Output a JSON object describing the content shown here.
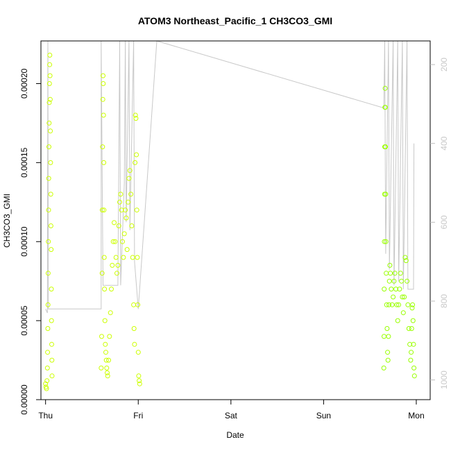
{
  "chart_data": {
    "type": "scatter",
    "title": "ATOM3 Northeast_Pacific_1 CH3CO3_GMI",
    "xlabel": "Date",
    "ylabel": "CH3CO3_GMI",
    "x_unit": "days since Thu 00:00",
    "xlim": [
      -0.05,
      4.15
    ],
    "ylim": [
      0.0,
      0.000227
    ],
    "x_ticks": [
      {
        "value": 0,
        "label": "Thu"
      },
      {
        "value": 1,
        "label": "Fri"
      },
      {
        "value": 2,
        "label": "Sat"
      },
      {
        "value": 3,
        "label": "Sun"
      },
      {
        "value": 4,
        "label": "Mon"
      }
    ],
    "y_ticks": [
      {
        "value": 0.0,
        "label": "0.00000"
      },
      {
        "value": 5e-05,
        "label": "0.00005"
      },
      {
        "value": 0.0001,
        "label": "0.00010"
      },
      {
        "value": 0.00015,
        "label": "0.00015"
      },
      {
        "value": 0.0002,
        "label": "0.00020"
      }
    ],
    "y2_ticks": [
      {
        "value": 200,
        "label": "200"
      },
      {
        "value": 400,
        "label": "400"
      },
      {
        "value": 600,
        "label": "600"
      },
      {
        "value": 800,
        "label": "800"
      },
      {
        "value": 1000,
        "label": "1000"
      }
    ],
    "y2lim": [
      1050,
      140
    ],
    "series": [
      {
        "color": "#ccff00",
        "points": [
          [
            0.0,
            1e-05
          ],
          [
            0.005,
            8e-06
          ],
          [
            0.01,
            7e-06
          ],
          [
            0.015,
            1.2e-05
          ],
          [
            0.02,
            2e-05
          ],
          [
            0.022,
            3e-05
          ],
          [
            0.024,
            4.5e-05
          ],
          [
            0.026,
            6e-05
          ],
          [
            0.028,
            8e-05
          ],
          [
            0.03,
            0.0001
          ],
          [
            0.032,
            0.00012
          ],
          [
            0.034,
            0.00014
          ],
          [
            0.036,
            0.00016
          ],
          [
            0.038,
            0.000175
          ],
          [
            0.04,
            0.000188
          ],
          [
            0.042,
            0.0002
          ],
          [
            0.044,
            0.000212
          ],
          [
            0.046,
            0.000218
          ],
          [
            0.048,
            0.000205
          ],
          [
            0.05,
            0.00019
          ],
          [
            0.052,
            0.00017
          ],
          [
            0.054,
            0.00015
          ],
          [
            0.056,
            0.00013
          ],
          [
            0.058,
            0.00011
          ],
          [
            0.06,
            9.5e-05
          ],
          [
            0.062,
            7e-05
          ],
          [
            0.064,
            5e-05
          ],
          [
            0.066,
            3.5e-05
          ],
          [
            0.068,
            2.5e-05
          ],
          [
            0.07,
            1.5e-05
          ],
          [
            0.6,
            2e-05
          ],
          [
            0.605,
            4e-05
          ],
          [
            0.61,
            8e-05
          ],
          [
            0.612,
            0.00012
          ],
          [
            0.615,
            0.00016
          ],
          [
            0.618,
            0.00019
          ],
          [
            0.62,
            0.000205
          ],
          [
            0.622,
            0.0002
          ],
          [
            0.625,
            0.00018
          ],
          [
            0.628,
            0.00015
          ],
          [
            0.63,
            0.00012
          ],
          [
            0.633,
            9e-05
          ],
          [
            0.636,
            7e-05
          ],
          [
            0.64,
            5e-05
          ],
          [
            0.645,
            3.5e-05
          ],
          [
            0.65,
            3e-05
          ],
          [
            0.655,
            2.5e-05
          ],
          [
            0.66,
            2e-05
          ],
          [
            0.665,
            1.7e-05
          ],
          [
            0.67,
            1.5e-05
          ],
          [
            0.68,
            2.5e-05
          ],
          [
            0.69,
            4e-05
          ],
          [
            0.7,
            5.5e-05
          ],
          [
            0.71,
            7e-05
          ],
          [
            0.72,
            8.5e-05
          ],
          [
            0.73,
            0.0001
          ],
          [
            0.74,
            0.000112
          ],
          [
            0.75,
            0.0001
          ],
          [
            0.76,
            9e-05
          ],
          [
            0.77,
            8e-05
          ],
          [
            0.78,
            8.5e-05
          ],
          [
            0.79,
            0.00011
          ],
          [
            0.8,
            0.000125
          ],
          [
            0.81,
            0.00013
          ],
          [
            0.82,
            0.00012
          ],
          [
            0.83,
            0.0001
          ],
          [
            0.84,
            9e-05
          ],
          [
            0.85,
            0.000105
          ],
          [
            0.86,
            0.00012
          ],
          [
            0.87,
            0.000115
          ],
          [
            0.88,
            9.5e-05
          ],
          [
            0.89,
            0.000125
          ],
          [
            0.9,
            0.00014
          ],
          [
            0.91,
            0.000145
          ],
          [
            0.92,
            0.00013
          ],
          [
            0.93,
            0.00011
          ],
          [
            0.94,
            9e-05
          ],
          [
            0.95,
            6e-05
          ],
          [
            0.955,
            4.5e-05
          ],
          [
            0.96,
            3.5e-05
          ],
          [
            0.965,
            0.00015
          ],
          [
            0.97,
            0.00018
          ],
          [
            0.975,
            0.000178
          ],
          [
            0.98,
            0.000155
          ],
          [
            0.985,
            0.00012
          ],
          [
            0.99,
            9e-05
          ],
          [
            0.995,
            6e-05
          ],
          [
            1.0,
            3e-05
          ],
          [
            1.005,
            1.5e-05
          ],
          [
            1.01,
            1.2e-05
          ],
          [
            1.015,
            1e-05
          ]
        ]
      },
      {
        "color": "#99ff00",
        "points": [
          [
            3.65,
            2e-05
          ],
          [
            3.652,
            4e-05
          ],
          [
            3.654,
            7e-05
          ],
          [
            3.656,
            0.0001
          ],
          [
            3.658,
            0.00013
          ],
          [
            3.66,
            0.00016
          ],
          [
            3.662,
            0.000185
          ],
          [
            3.664,
            0.000197
          ],
          [
            3.666,
            0.000185
          ],
          [
            3.668,
            0.00016
          ],
          [
            3.67,
            0.00013
          ],
          [
            3.672,
            0.0001
          ],
          [
            3.675,
            8e-05
          ],
          [
            3.68,
            6e-05
          ],
          [
            3.685,
            4.5e-05
          ],
          [
            3.69,
            3e-05
          ],
          [
            3.695,
            2.5e-05
          ],
          [
            3.7,
            4e-05
          ],
          [
            3.705,
            6e-05
          ],
          [
            3.71,
            7.5e-05
          ],
          [
            3.715,
            8.5e-05
          ],
          [
            3.72,
            8e-05
          ],
          [
            3.73,
            7e-05
          ],
          [
            3.74,
            6e-05
          ],
          [
            3.75,
            6.5e-05
          ],
          [
            3.76,
            7.5e-05
          ],
          [
            3.77,
            8e-05
          ],
          [
            3.78,
            7e-05
          ],
          [
            3.79,
            6e-05
          ],
          [
            3.8,
            5e-05
          ],
          [
            3.81,
            6e-05
          ],
          [
            3.82,
            7e-05
          ],
          [
            3.83,
            8e-05
          ],
          [
            3.84,
            7.5e-05
          ],
          [
            3.85,
            6.5e-05
          ],
          [
            3.86,
            5.5e-05
          ],
          [
            3.87,
            6.5e-05
          ],
          [
            3.88,
            9e-05
          ],
          [
            3.89,
            8.8e-05
          ],
          [
            3.9,
            7.5e-05
          ],
          [
            3.91,
            6e-05
          ],
          [
            3.92,
            4.5e-05
          ],
          [
            3.93,
            3.5e-05
          ],
          [
            3.94,
            2.5e-05
          ],
          [
            3.945,
            3e-05
          ],
          [
            3.95,
            4.5e-05
          ],
          [
            3.955,
            5.8e-05
          ],
          [
            3.96,
            6e-05
          ],
          [
            3.965,
            5e-05
          ],
          [
            3.97,
            3.5e-05
          ],
          [
            3.975,
            2e-05
          ],
          [
            3.98,
            1.5e-05
          ]
        ]
      }
    ],
    "pressure_line": [
      [
        0.0,
        820
      ],
      [
        0.02,
        830
      ],
      [
        0.025,
        140
      ],
      [
        0.03,
        820
      ],
      [
        0.6,
        820
      ],
      [
        0.6,
        140
      ],
      [
        0.62,
        760
      ],
      [
        0.78,
        760
      ],
      [
        0.8,
        140
      ],
      [
        0.81,
        760
      ],
      [
        0.85,
        500
      ],
      [
        0.86,
        140
      ],
      [
        0.87,
        600
      ],
      [
        0.9,
        140
      ],
      [
        0.91,
        620
      ],
      [
        0.95,
        140
      ],
      [
        0.96,
        700
      ],
      [
        1.0,
        820
      ],
      [
        1.2,
        140
      ],
      [
        3.65,
        310
      ],
      [
        3.66,
        140
      ],
      [
        3.67,
        680
      ],
      [
        3.7,
        140
      ],
      [
        3.71,
        720
      ],
      [
        3.75,
        140
      ],
      [
        3.76,
        760
      ],
      [
        3.8,
        140
      ],
      [
        3.81,
        750
      ],
      [
        3.85,
        140
      ],
      [
        3.86,
        770
      ],
      [
        3.9,
        140
      ],
      [
        3.91,
        770
      ],
      [
        3.95,
        770
      ],
      [
        3.96,
        770
      ],
      [
        3.97,
        770
      ],
      [
        3.975,
        400
      ]
    ]
  }
}
